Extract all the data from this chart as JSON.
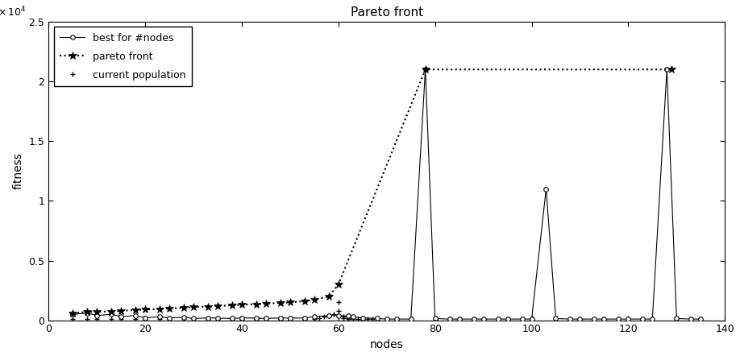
{
  "title": "Pareto front",
  "xlabel": "nodes",
  "ylabel": "fitness",
  "xlim": [
    0,
    140
  ],
  "ylim": [
    0,
    25000
  ],
  "best_nodes_x": [
    5,
    8,
    10,
    13,
    15,
    18,
    20,
    23,
    25,
    28,
    30,
    33,
    35,
    38,
    40,
    43,
    45,
    48,
    50,
    53,
    55,
    58,
    60,
    62,
    63,
    65,
    68,
    70,
    72,
    75,
    78,
    80,
    83,
    85,
    88,
    90,
    93,
    95,
    98,
    100,
    103,
    105,
    108,
    110,
    113,
    115,
    118,
    120,
    123,
    125,
    128,
    130,
    133,
    135
  ],
  "best_nodes_y": [
    500,
    600,
    400,
    500,
    300,
    400,
    200,
    300,
    200,
    250,
    150,
    200,
    180,
    150,
    200,
    180,
    150,
    200,
    180,
    200,
    300,
    400,
    400,
    350,
    300,
    200,
    150,
    100,
    100,
    100,
    21000,
    150,
    100,
    100,
    100,
    100,
    100,
    100,
    100,
    100,
    11000,
    150,
    100,
    100,
    100,
    100,
    100,
    100,
    100,
    100,
    21000,
    150,
    100,
    100
  ],
  "pareto_x": [
    5,
    8,
    10,
    13,
    15,
    18,
    20,
    23,
    25,
    28,
    30,
    33,
    35,
    38,
    40,
    43,
    45,
    48,
    50,
    53,
    55,
    58,
    60,
    78,
    129
  ],
  "pareto_y": [
    600,
    700,
    700,
    750,
    800,
    850,
    900,
    950,
    1000,
    1050,
    1100,
    1150,
    1200,
    1250,
    1300,
    1350,
    1400,
    1450,
    1500,
    1600,
    1700,
    2000,
    3000,
    21000,
    21000
  ],
  "current_pop_x": [
    56,
    57,
    58,
    59,
    60,
    60,
    61,
    61,
    62,
    62,
    63,
    64,
    65,
    66,
    67,
    68,
    70,
    72,
    75,
    55,
    53,
    50,
    48,
    45,
    43,
    40,
    38,
    35,
    33,
    30,
    28,
    25,
    23,
    20,
    18,
    15,
    13,
    10,
    8,
    5,
    80,
    85,
    90,
    95,
    100,
    105,
    110,
    115,
    120,
    125,
    130
  ],
  "current_pop_y": [
    200,
    300,
    400,
    500,
    1500,
    800,
    300,
    200,
    150,
    100,
    100,
    100,
    100,
    100,
    100,
    100,
    100,
    100,
    100,
    100,
    100,
    100,
    100,
    100,
    100,
    100,
    100,
    100,
    100,
    100,
    100,
    100,
    100,
    100,
    100,
    100,
    100,
    100,
    100,
    100,
    100,
    100,
    100,
    100,
    100,
    100,
    100,
    100,
    100,
    100,
    100
  ],
  "legend_loc": "upper left",
  "bg_color": "#ffffff"
}
